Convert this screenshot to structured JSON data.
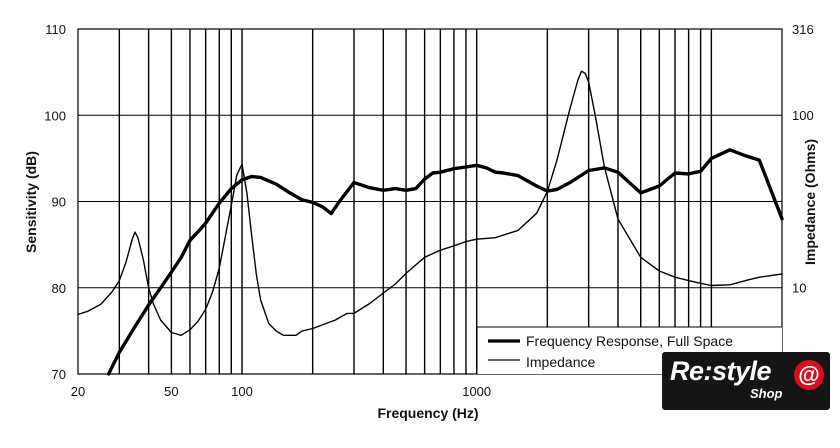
{
  "chart_data": {
    "type": "line",
    "title": "",
    "xlabel": "Frequency (Hz)",
    "ylabel_left": "Sensitivity (dB)",
    "ylabel_right": "Impedance (Ohms)",
    "x_scale": "log",
    "xlim": [
      20,
      20000
    ],
    "ylim_left": [
      70,
      110
    ],
    "ylim_right_log": [
      3.16,
      316
    ],
    "x_tick_labels": [
      "20",
      "50",
      "100",
      "1000"
    ],
    "y_left_tick_labels": [
      "70",
      "80",
      "90",
      "100",
      "110"
    ],
    "y_right_tick_labels": [
      "10",
      "100",
      "316"
    ],
    "grid": "vertical-only",
    "legend_position": "bottom-right",
    "series": [
      {
        "name": "Frequency Response, Full Space",
        "axis": "left",
        "unit": "dB",
        "x": [
          27,
          30,
          35,
          40,
          45,
          50,
          55,
          60,
          65,
          70,
          80,
          90,
          100,
          110,
          120,
          140,
          160,
          180,
          200,
          220,
          240,
          260,
          300,
          350,
          400,
          450,
          500,
          550,
          600,
          650,
          700,
          800,
          900,
          1000,
          1100,
          1200,
          1300,
          1500,
          1800,
          2000,
          2200,
          2500,
          3000,
          3500,
          4000,
          5000,
          6000,
          7000,
          8000,
          9000,
          10000,
          12000,
          14000,
          16000,
          20000
        ],
        "values": [
          70,
          72.5,
          75.5,
          78,
          80,
          81.8,
          83.5,
          85.5,
          86.5,
          87.5,
          89.8,
          91.5,
          92.5,
          92.9,
          92.8,
          92.0,
          91.0,
          90.2,
          89.9,
          89.4,
          88.6,
          90.0,
          92.2,
          91.6,
          91.3,
          91.5,
          91.3,
          91.5,
          92.6,
          93.3,
          93.4,
          93.8,
          94.0,
          94.2,
          93.9,
          93.4,
          93.3,
          93.0,
          91.8,
          91.2,
          91.4,
          92.2,
          93.6,
          93.9,
          93.4,
          91.0,
          91.8,
          93.3,
          93.2,
          93.5,
          95.0,
          96.0,
          95.3,
          94.8,
          88.0
        ]
      },
      {
        "name": "Impedance",
        "axis": "right",
        "unit": "Ohms",
        "x": [
          20,
          22,
          25,
          28,
          30,
          32,
          34,
          35,
          36,
          38,
          40,
          42,
          45,
          50,
          55,
          60,
          65,
          70,
          75,
          80,
          85,
          90,
          95,
          100,
          105,
          110,
          115,
          120,
          130,
          140,
          150,
          160,
          170,
          180,
          200,
          250,
          280,
          300,
          350,
          400,
          450,
          500,
          600,
          700,
          800,
          900,
          1000,
          1200,
          1500,
          1800,
          2000,
          2200,
          2500,
          2700,
          2800,
          2900,
          3000,
          3200,
          3500,
          4000,
          5000,
          6000,
          7000,
          8000,
          9000,
          10000,
          12000,
          14000,
          16000,
          20000
        ],
        "values": [
          7.0,
          7.3,
          8.0,
          9.5,
          11.0,
          14.0,
          19.0,
          21.0,
          19.5,
          14.5,
          10.0,
          8.0,
          6.5,
          5.5,
          5.3,
          5.7,
          6.4,
          7.5,
          9.5,
          13.0,
          20.0,
          30.0,
          45.0,
          52.0,
          35.0,
          20.0,
          12.0,
          8.5,
          6.2,
          5.6,
          5.3,
          5.3,
          5.3,
          5.6,
          5.8,
          6.5,
          7.1,
          7.1,
          8.1,
          9.3,
          10.5,
          12.1,
          15.0,
          16.5,
          17.5,
          18.5,
          19.1,
          19.5,
          21.5,
          27.0,
          36.0,
          55.0,
          110.0,
          160.0,
          180.0,
          175.0,
          155.0,
          100.0,
          50.0,
          25.0,
          15.0,
          12.5,
          11.5,
          11.0,
          10.6,
          10.3,
          10.4,
          11.0,
          11.5,
          12.0
        ]
      }
    ]
  },
  "watermark": {
    "brand": "Re:style",
    "sub": "Shop",
    "symbol": "@"
  }
}
